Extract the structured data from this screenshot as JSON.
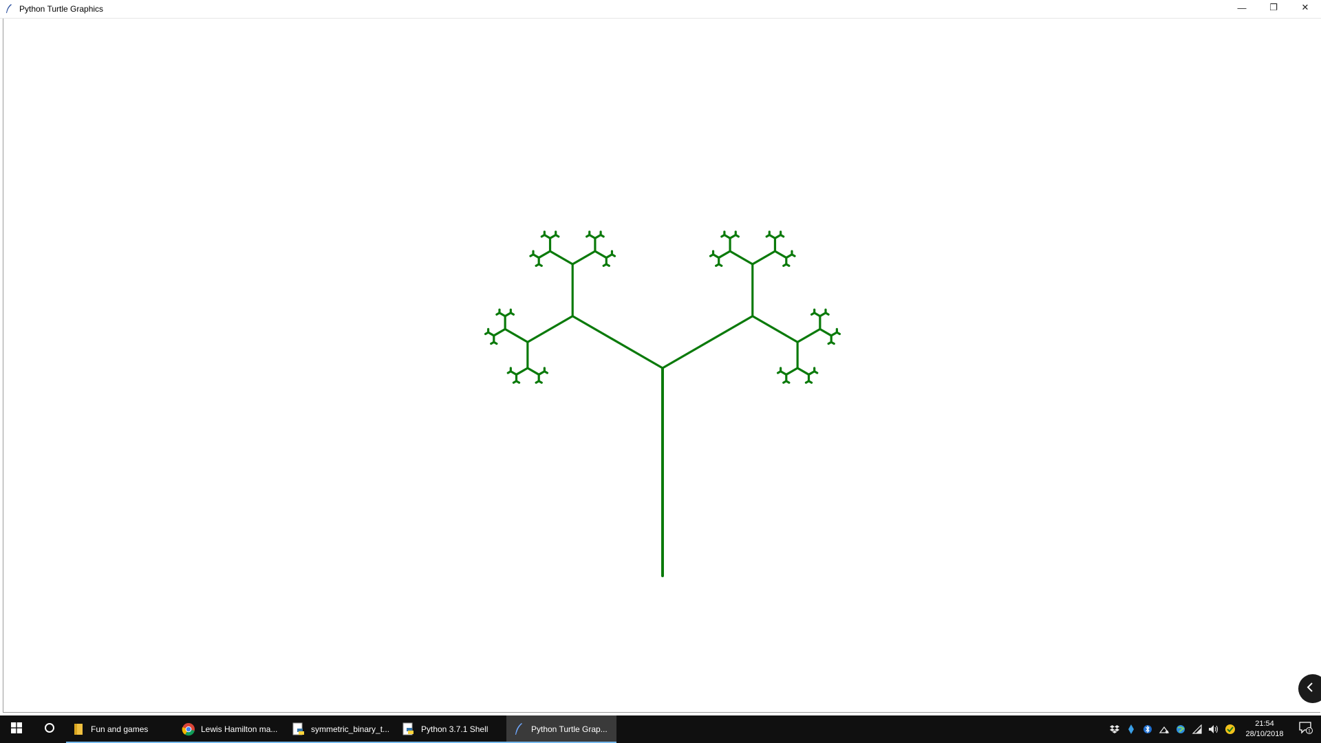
{
  "window": {
    "title": "Python Turtle Graphics",
    "controls": {
      "minimize": "—",
      "restore": "❐",
      "close": "✕"
    }
  },
  "canvas": {
    "background": "#ffffff",
    "pen_color": "#0b7a0b",
    "drawing": "symmetric binary tree (fractal)",
    "tree": {
      "trunk_length": 302,
      "branch_ratio": 0.5,
      "branch_angle_deg": 60,
      "depth": 10
    }
  },
  "taskbar": {
    "items": [
      {
        "label": "Fun and games",
        "icon": "folder-icon",
        "active": false,
        "open": true
      },
      {
        "label": "Lewis Hamilton ma...",
        "icon": "chrome-icon",
        "active": false,
        "open": true
      },
      {
        "label": "symmetric_binary_t...",
        "icon": "python-file-icon",
        "active": false,
        "open": true
      },
      {
        "label": "Python 3.7.1 Shell",
        "icon": "python-shell-icon",
        "active": false,
        "open": true
      },
      {
        "label": "Python Turtle Grap...",
        "icon": "turtle-feather-icon",
        "active": true,
        "open": true
      }
    ],
    "tray": {
      "time": "21:54",
      "date": "28/10/2018",
      "notification_count": "1"
    }
  },
  "colors": {
    "taskbar_bg": "#101010",
    "taskbar_active": "#3a3a3a",
    "accent_underline": "#76b9ed",
    "tree_green": "#0b7a0b"
  }
}
